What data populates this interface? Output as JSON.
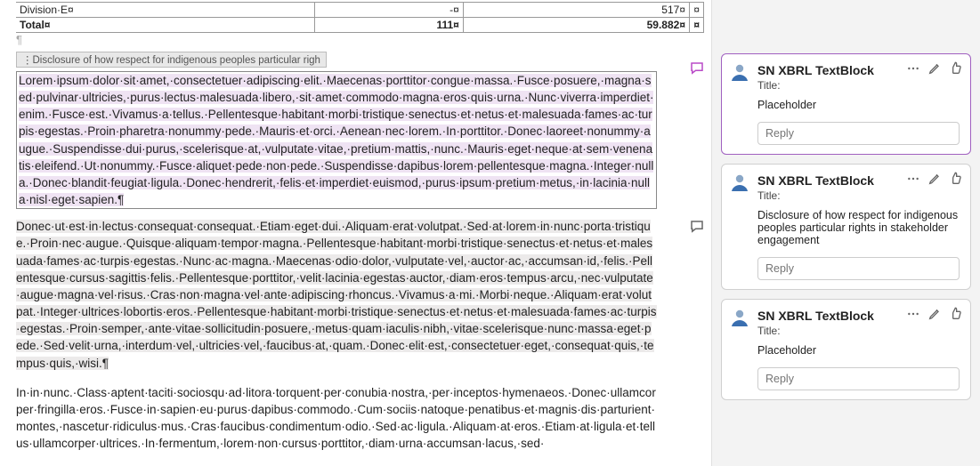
{
  "doc": {
    "table": {
      "row1": {
        "label": "Division·E¤",
        "col1": "-¤",
        "col2": "517¤",
        "tail": "¤"
      },
      "row2": {
        "label": "Total¤",
        "col1": "111¤",
        "col2": "59.882¤",
        "tail": "¤"
      }
    },
    "para_mark": "¶",
    "tag": "⋮Disclosure of how respect for indigenous peoples particular righ",
    "block1": "Lorem·ipsum·dolor·sit·amet,·consectetuer·adipiscing·elit.·Maecenas·porttitor·congue·massa.·Fusce·posuere,·magna·sed·pulvinar·ultricies,·purus·lectus·malesuada·libero,·sit·amet·commodo·magna·eros·quis·urna.·Nunc·viverra·imperdiet·enim.·Fusce·est.·Vivamus·a·tellus.·Pellentesque·habitant·morbi·tristique·senectus·et·netus·et·malesuada·fames·ac·turpis·egestas.·Proin·pharetra·nonummy·pede.·Mauris·et·orci.·Aenean·nec·lorem.·In·porttitor.·Donec·laoreet·nonummy·augue.·Suspendisse·dui·purus,·scelerisque·at,·vulputate·vitae,·pretium·mattis,·nunc.·Mauris·eget·neque·at·sem·venenatis·eleifend.·Ut·nonummy.·Fusce·aliquet·pede·non·pede.·Suspendisse·dapibus·lorem·pellentesque·magna.·Integer·nulla.·Donec·blandit·feugiat·ligula.·Donec·hendrerit,·felis·et·imperdiet·euismod,·purus·ipsum·pretium·metus,·in·lacinia·nulla·nisl·eget·sapien.¶",
    "block2": "Donec·ut·est·in·lectus·consequat·consequat.·Etiam·eget·dui.·Aliquam·erat·volutpat.·Sed·at·lorem·in·nunc·porta·tristique.·Proin·nec·augue.·Quisque·aliquam·tempor·magna.·Pellentesque·habitant·morbi·tristique·senectus·et·netus·et·malesuada·fames·ac·turpis·egestas.·Nunc·ac·magna.·Maecenas·odio·dolor,·vulputate·vel,·auctor·ac,·accumsan·id,·felis.·Pellentesque·cursus·sagittis·felis.·Pellentesque·porttitor,·velit·lacinia·egestas·auctor,·diam·eros·tempus·arcu,·nec·vulputate·augue·magna·vel·risus.·Cras·non·magna·vel·ante·adipiscing·rhoncus.·Vivamus·a·mi.·Morbi·neque.·Aliquam·erat·volutpat.·Integer·ultrices·lobortis·eros.·Pellentesque·habitant·morbi·tristique·senectus·et·netus·et·malesuada·fames·ac·turpis·egestas.·Proin·semper,·ante·vitae·sollicitudin·posuere,·metus·quam·iaculis·nibh,·vitae·scelerisque·nunc·massa·eget·pede.·Sed·velit·urna,·interdum·vel,·ultricies·vel,·faucibus·at,·quam.·Donec·elit·est,·consectetuer·eget,·consequat·quis,·tempus·quis,·wisi.¶",
    "block3": "In·in·nunc.·Class·aptent·taciti·sociosqu·ad·litora·torquent·per·conubia·nostra,·per·inceptos·hymenaeos.·Donec·ullamcorper·fringilla·eros.·Fusce·in·sapien·eu·purus·dapibus·commodo.·Cum·sociis·natoque·penatibus·et·magnis·dis·parturient·montes,·nascetur·ridiculus·mus.·Cras·faucibus·condimentum·odio.·Sed·ac·ligula.·Aliquam·at·eros.·Etiam·at·ligula·et·tellus·ullamcorper·ultrices.·In·fermentum,·lorem·non·cursus·porttitor,·diam·urna·accumsan·lacus,·sed·"
  },
  "colors": {
    "comment_bubble": "#b94ac7",
    "avatar_primary": "#3a6fb0",
    "avatar_secondary": "#8aa7c7",
    "edit_icon": "#666666",
    "thumb_icon": "#666666"
  },
  "comments": [
    {
      "author": "SN XBRL TextBlock",
      "title_label": "Title:",
      "body": "Placeholder",
      "reply_placeholder": "Reply",
      "active": true
    },
    {
      "author": "SN XBRL TextBlock",
      "title_label": "Title:",
      "body": "Disclosure of how respect for indigenous peoples particular rights in stakeholder engagement",
      "reply_placeholder": "Reply",
      "active": false
    },
    {
      "author": "SN XBRL TextBlock",
      "title_label": "Title:",
      "body": "Placeholder",
      "reply_placeholder": "Reply",
      "active": false
    }
  ]
}
